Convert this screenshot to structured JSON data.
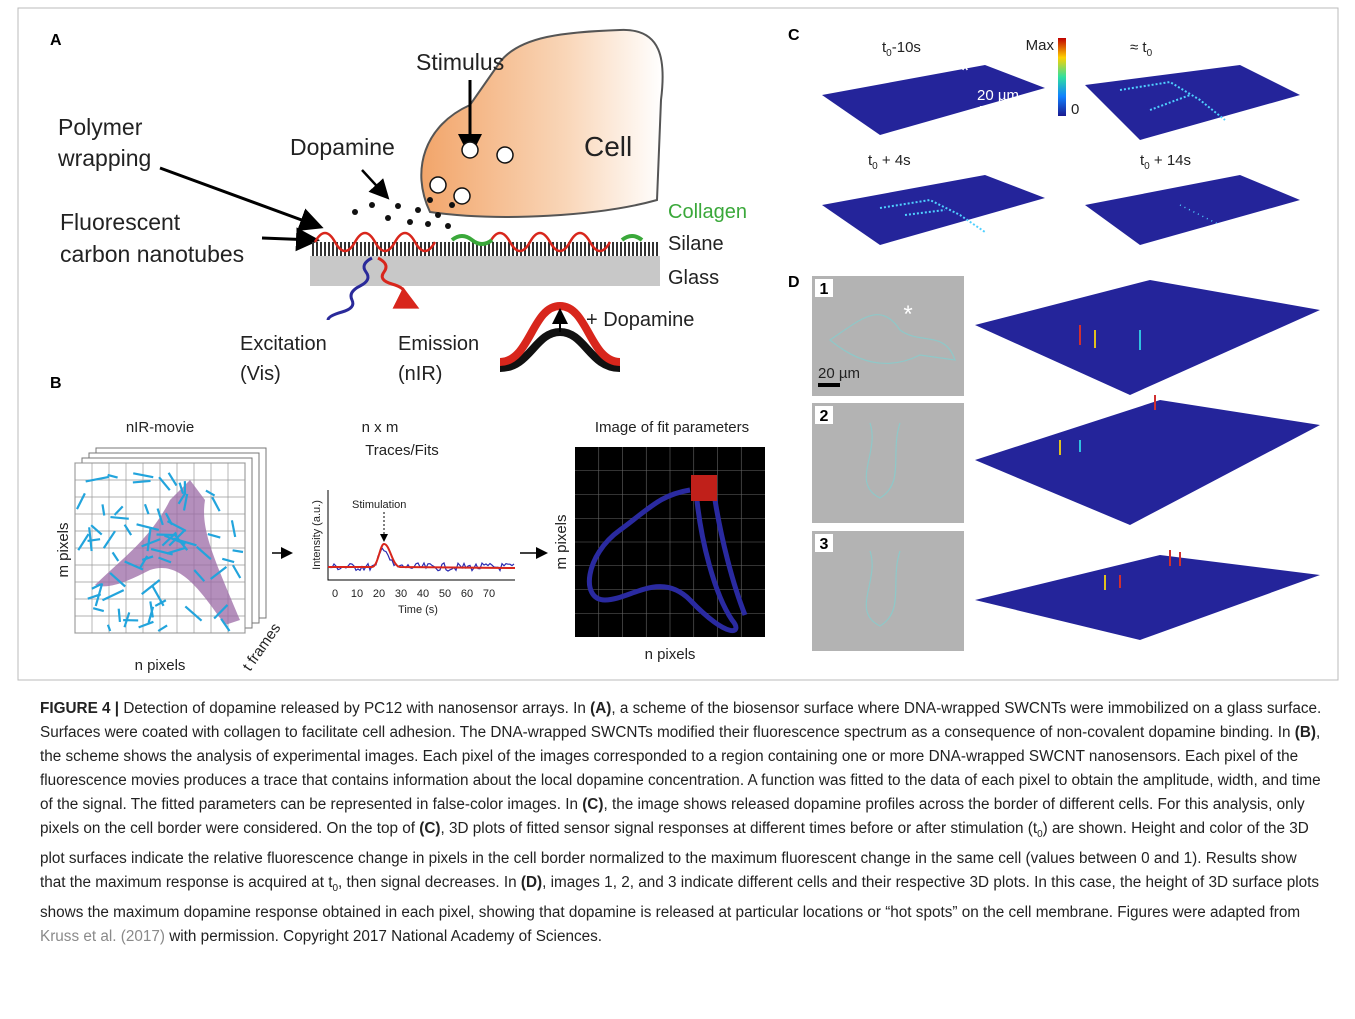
{
  "panel_a": {
    "label": "A",
    "stimulus": "Stimulus",
    "cell": "Cell",
    "polymer": [
      "Polymer",
      "wrapping"
    ],
    "dopamine": "Dopamine",
    "nanotubes": [
      "Fluorescent",
      "carbon nanotubes"
    ],
    "collagen": "Collagen",
    "silane": "Silane",
    "glass": "Glass",
    "excitation": [
      "Excitation",
      "(Vis)"
    ],
    "emission": [
      "Emission",
      "(nIR)"
    ],
    "plus_dopamine": "+ Dopamine"
  },
  "panel_b": {
    "label": "B",
    "movie_title": "nIR-movie",
    "m_pixels": "m pixels",
    "n_pixels": "n pixels",
    "t_frames": "t frames",
    "traces_title": [
      "n x m",
      "Traces/Fits"
    ],
    "stimulation": "Stimulation",
    "y_axis": "Intensity (a.u.)",
    "x_ticks": [
      0,
      10,
      20,
      30,
      40,
      50,
      60,
      70
    ],
    "x_axis": "Time (s)",
    "fit_title": "Image of fit parameters",
    "fit_m_pixels": "m pixels",
    "fit_n_pixels": "n pixels"
  },
  "panel_c": {
    "label": "C",
    "plots": [
      {
        "t": "t",
        "sub": "0",
        "rest": "-10s"
      },
      {
        "t": "≈ t",
        "sub": "0",
        "rest": ""
      },
      {
        "t": "t",
        "sub": "0",
        "rest": " + 4s"
      },
      {
        "t": "t",
        "sub": "0",
        "rest": " + 14s"
      }
    ],
    "asterisk": "*",
    "scale": "20 µm",
    "colorbar_max": "Max",
    "colorbar_min": "0"
  },
  "panel_d": {
    "label": "D",
    "cells": [
      "1",
      "2",
      "3"
    ],
    "scale": "20 µm",
    "asterisk": "*"
  },
  "caption": {
    "parts": [
      "FIGURE 4 |",
      " Detection of dopamine released by PC12 with nanosensor arrays. In ",
      "(A)",
      ", a scheme of the biosensor surface where DNA-wrapped SWCNTs were immobilized on a glass surface. Surfaces were coated with collagen to facilitate cell adhesion. The DNA-wrapped SWCNTs modified their fluorescence spectrum as a consequence of non-covalent dopamine binding. In ",
      "(B)",
      ", the scheme shows the analysis of experimental images. Each pixel of the images corresponded to a region containing one or more DNA-wrapped SWCNT nanosensors. Each pixel of the fluorescence movies produces a trace that contains information about the local dopamine concentration. A function was fitted to the data of each pixel to obtain the amplitude, width, and time of the signal. The fitted parameters can be represented in false-color images. In ",
      "(C)",
      ", the image shows released dopamine profiles across the border of different cells. For this analysis, only pixels on the cell border were considered. On the top of ",
      "(C)",
      ", 3D plots of fitted sensor signal responses at different times before or after stimulation (t",
      "0",
      ") are shown. Height and color of the 3D plot surfaces indicate the relative fluorescence change in pixels in the cell border normalized to the maximum fluorescent change in the same cell (values between 0 and 1). Results show that the maximum response is acquired at t",
      "0",
      ", then signal decreases. In ",
      "(D)",
      ", images 1, 2, and 3 indicate different cells and their respective 3D plots. In this case, the height of 3D surface plots shows the maximum dopamine response obtained in each pixel, showing that dopamine is released at particular locations or “hot spots” on the cell membrane. Figures were adapted from ",
      "Kruss et al. (2017)",
      " with permission. Copyright 2017 National Academy of Sciences."
    ]
  }
}
